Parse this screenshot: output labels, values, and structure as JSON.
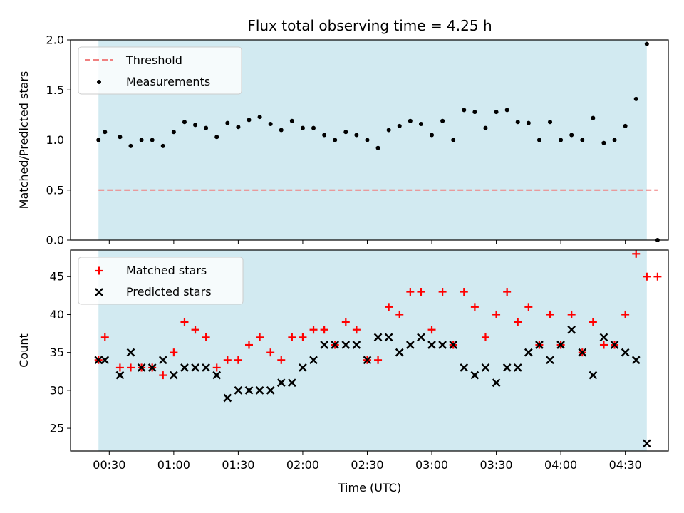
{
  "chart_data": {
    "title": "Flux total observing time = 4.25 h",
    "xlabel": "Time (UTC)",
    "x_tick_labels": [
      "00:30",
      "01:00",
      "01:30",
      "02:00",
      "02:30",
      "03:00",
      "03:30",
      "04:00",
      "04:30"
    ],
    "x_tick_values": [
      "00:30",
      "01:00",
      "01:30",
      "02:00",
      "02:30",
      "03:00",
      "03:30",
      "04:00",
      "04:30"
    ],
    "shaded_span": {
      "from": "00:25",
      "to": "04:40",
      "color": "#add8e6"
    },
    "colors": {
      "threshold": "#f08080",
      "measurements": "#000000",
      "matched": "#ff0000",
      "predicted": "#000000"
    },
    "panels": [
      {
        "type": "scatter",
        "ylabel": "Matched/Predicted stars",
        "ylim": [
          0,
          2.0
        ],
        "y_tick_labels": [
          "0.0",
          "0.5",
          "1.0",
          "1.5",
          "2.0"
        ],
        "y_tick_values": [
          0,
          0.5,
          1.0,
          1.5,
          2.0
        ],
        "legend": [
          "Threshold",
          "Measurements"
        ],
        "legend_position": "upper-left",
        "threshold": 0.5,
        "series": [
          {
            "name": "Measurements",
            "marker": "dot",
            "points": [
              [
                "00:25",
                1.0
              ],
              [
                "00:28",
                1.08
              ],
              [
                "00:35",
                1.03
              ],
              [
                "00:40",
                0.94
              ],
              [
                "00:45",
                1.0
              ],
              [
                "00:50",
                1.0
              ],
              [
                "00:55",
                0.94
              ],
              [
                "01:00",
                1.08
              ],
              [
                "01:05",
                1.18
              ],
              [
                "01:10",
                1.15
              ],
              [
                "01:15",
                1.12
              ],
              [
                "01:20",
                1.03
              ],
              [
                "01:25",
                1.17
              ],
              [
                "01:30",
                1.13
              ],
              [
                "01:35",
                1.2
              ],
              [
                "01:40",
                1.23
              ],
              [
                "01:45",
                1.16
              ],
              [
                "01:50",
                1.1
              ],
              [
                "01:55",
                1.19
              ],
              [
                "02:00",
                1.12
              ],
              [
                "02:05",
                1.12
              ],
              [
                "02:10",
                1.05
              ],
              [
                "02:15",
                1.0
              ],
              [
                "02:20",
                1.08
              ],
              [
                "02:25",
                1.05
              ],
              [
                "02:30",
                1.0
              ],
              [
                "02:35",
                0.92
              ],
              [
                "02:40",
                1.1
              ],
              [
                "02:45",
                1.14
              ],
              [
                "02:50",
                1.19
              ],
              [
                "02:55",
                1.16
              ],
              [
                "03:00",
                1.05
              ],
              [
                "03:05",
                1.19
              ],
              [
                "03:10",
                1.0
              ],
              [
                "03:15",
                1.3
              ],
              [
                "03:20",
                1.28
              ],
              [
                "03:25",
                1.12
              ],
              [
                "03:30",
                1.28
              ],
              [
                "03:35",
                1.3
              ],
              [
                "03:40",
                1.18
              ],
              [
                "03:45",
                1.17
              ],
              [
                "03:50",
                1.0
              ],
              [
                "03:55",
                1.18
              ],
              [
                "04:00",
                1.0
              ],
              [
                "04:05",
                1.05
              ],
              [
                "04:10",
                1.0
              ],
              [
                "04:15",
                1.22
              ],
              [
                "04:20",
                0.97
              ],
              [
                "04:25",
                1.0
              ],
              [
                "04:30",
                1.14
              ],
              [
                "04:35",
                1.41
              ],
              [
                "04:40",
                1.96
              ],
              [
                "04:45",
                0.0
              ]
            ]
          }
        ]
      },
      {
        "type": "scatter",
        "ylabel": "Count",
        "ylim": [
          22,
          48.5
        ],
        "y_tick_labels": [
          "25",
          "30",
          "35",
          "40",
          "45"
        ],
        "y_tick_values": [
          25,
          30,
          35,
          40,
          45
        ],
        "legend": [
          "Matched stars",
          "Predicted stars"
        ],
        "legend_position": "upper-left",
        "series": [
          {
            "name": "Matched stars",
            "marker": "plus",
            "points": [
              [
                "00:25",
                34
              ],
              [
                "00:28",
                37
              ],
              [
                "00:35",
                33
              ],
              [
                "00:40",
                33
              ],
              [
                "00:45",
                33
              ],
              [
                "00:50",
                33
              ],
              [
                "00:55",
                32
              ],
              [
                "01:00",
                35
              ],
              [
                "01:05",
                39
              ],
              [
                "01:10",
                38
              ],
              [
                "01:15",
                37
              ],
              [
                "01:20",
                33
              ],
              [
                "01:25",
                34
              ],
              [
                "01:30",
                34
              ],
              [
                "01:35",
                36
              ],
              [
                "01:40",
                37
              ],
              [
                "01:45",
                35
              ],
              [
                "01:50",
                34
              ],
              [
                "01:55",
                37
              ],
              [
                "02:00",
                37
              ],
              [
                "02:05",
                38
              ],
              [
                "02:10",
                38
              ],
              [
                "02:15",
                36
              ],
              [
                "02:20",
                39
              ],
              [
                "02:25",
                38
              ],
              [
                "02:30",
                34
              ],
              [
                "02:35",
                34
              ],
              [
                "02:40",
                41
              ],
              [
                "02:45",
                40
              ],
              [
                "02:50",
                43
              ],
              [
                "02:55",
                43
              ],
              [
                "03:00",
                38
              ],
              [
                "03:05",
                43
              ],
              [
                "03:10",
                36
              ],
              [
                "03:15",
                43
              ],
              [
                "03:20",
                41
              ],
              [
                "03:25",
                37
              ],
              [
                "03:30",
                40
              ],
              [
                "03:35",
                43
              ],
              [
                "03:40",
                39
              ],
              [
                "03:45",
                41
              ],
              [
                "03:50",
                36
              ],
              [
                "03:55",
                40
              ],
              [
                "04:00",
                36
              ],
              [
                "04:05",
                40
              ],
              [
                "04:10",
                35
              ],
              [
                "04:15",
                39
              ],
              [
                "04:20",
                36
              ],
              [
                "04:25",
                36
              ],
              [
                "04:30",
                40
              ],
              [
                "04:35",
                48
              ],
              [
                "04:40",
                45
              ],
              [
                "04:45",
                45
              ]
            ]
          },
          {
            "name": "Predicted stars",
            "marker": "x",
            "points": [
              [
                "00:25",
                34
              ],
              [
                "00:28",
                34
              ],
              [
                "00:35",
                32
              ],
              [
                "00:40",
                35
              ],
              [
                "00:45",
                33
              ],
              [
                "00:50",
                33
              ],
              [
                "00:55",
                34
              ],
              [
                "01:00",
                32
              ],
              [
                "01:05",
                33
              ],
              [
                "01:10",
                33
              ],
              [
                "01:15",
                33
              ],
              [
                "01:20",
                32
              ],
              [
                "01:25",
                29
              ],
              [
                "01:30",
                30
              ],
              [
                "01:35",
                30
              ],
              [
                "01:40",
                30
              ],
              [
                "01:45",
                30
              ],
              [
                "01:50",
                31
              ],
              [
                "01:55",
                31
              ],
              [
                "02:00",
                33
              ],
              [
                "02:05",
                34
              ],
              [
                "02:10",
                36
              ],
              [
                "02:15",
                36
              ],
              [
                "02:20",
                36
              ],
              [
                "02:25",
                36
              ],
              [
                "02:30",
                34
              ],
              [
                "02:35",
                37
              ],
              [
                "02:40",
                37
              ],
              [
                "02:45",
                35
              ],
              [
                "02:50",
                36
              ],
              [
                "02:55",
                37
              ],
              [
                "03:00",
                36
              ],
              [
                "03:05",
                36
              ],
              [
                "03:10",
                36
              ],
              [
                "03:15",
                33
              ],
              [
                "03:20",
                32
              ],
              [
                "03:25",
                33
              ],
              [
                "03:30",
                31
              ],
              [
                "03:35",
                33
              ],
              [
                "03:40",
                33
              ],
              [
                "03:45",
                35
              ],
              [
                "03:50",
                36
              ],
              [
                "03:55",
                34
              ],
              [
                "04:00",
                36
              ],
              [
                "04:05",
                38
              ],
              [
                "04:10",
                35
              ],
              [
                "04:15",
                32
              ],
              [
                "04:20",
                37
              ],
              [
                "04:25",
                36
              ],
              [
                "04:30",
                35
              ],
              [
                "04:35",
                34
              ],
              [
                "04:40",
                23
              ]
            ]
          }
        ]
      }
    ]
  }
}
